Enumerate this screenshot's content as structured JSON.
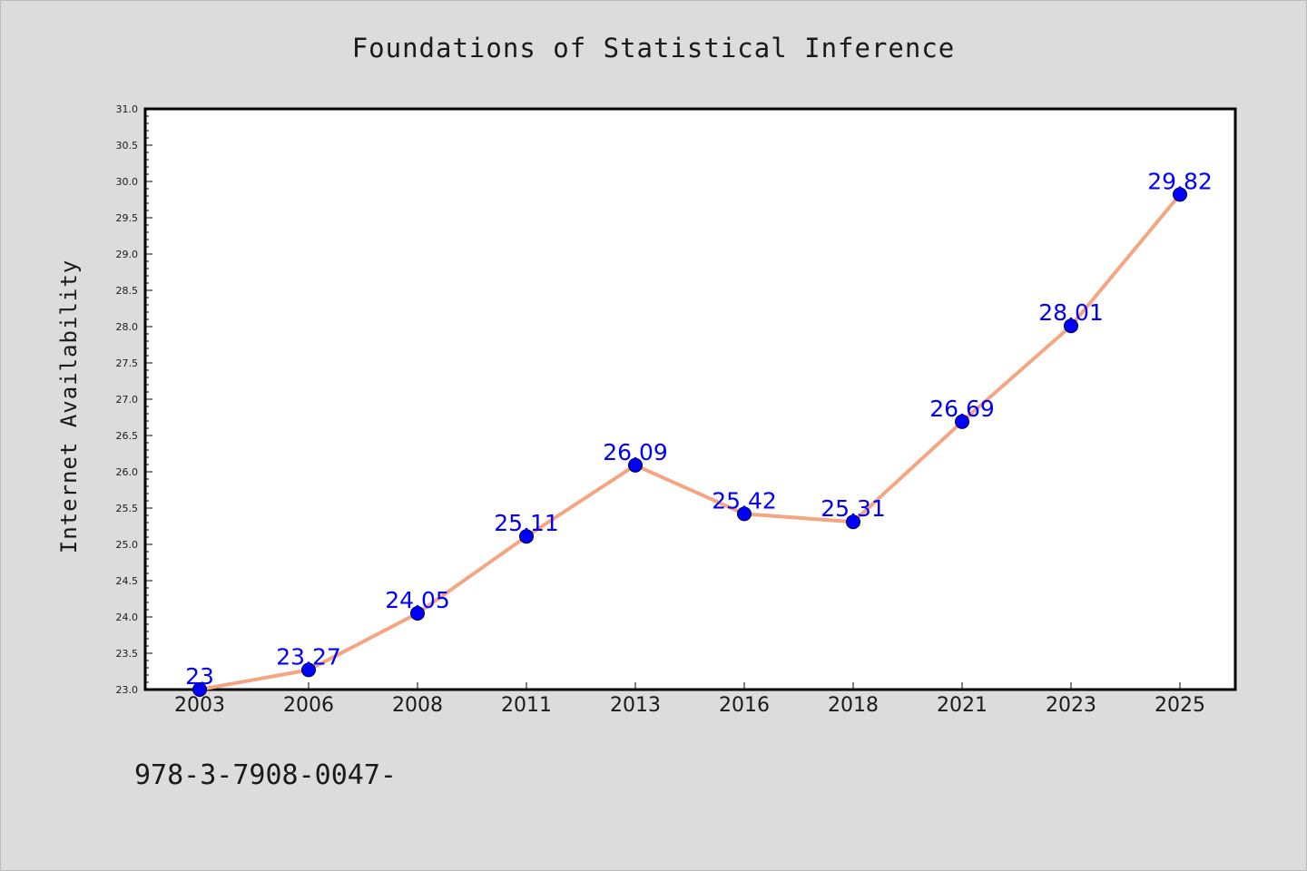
{
  "chart_data": {
    "type": "line",
    "title": "Foundations of Statistical Inference",
    "xlabel": "",
    "ylabel": "Internet Availability",
    "categories": [
      "2003",
      "2006",
      "2008",
      "2011",
      "2013",
      "2016",
      "2018",
      "2021",
      "2023",
      "2025"
    ],
    "series": [
      {
        "values": [
          23,
          23.27,
          24.05,
          25.11,
          26.09,
          25.42,
          25.31,
          26.69,
          28.01,
          29.82
        ],
        "data_labels": [
          "23",
          "23.27",
          "24.05",
          "25.11",
          "26.09",
          "25.42",
          "25.31",
          "26.69",
          "28.01",
          "29.82"
        ],
        "line_color": "#f4a582",
        "marker_color": "#0000ff"
      }
    ],
    "ylim": [
      23.0,
      31.0
    ],
    "yticks": [
      "23.0",
      "23.5",
      "24.0",
      "24.5",
      "25.0",
      "25.5",
      "26.0",
      "26.5",
      "27.0",
      "27.5",
      "28.0",
      "28.5",
      "29.0",
      "29.5",
      "30.0",
      "30.5",
      "31.0"
    ],
    "grid": false,
    "legend": "none"
  },
  "footer": {
    "isbn": "978-3-7908-0047-"
  },
  "colors": {
    "background": "#dcdcdc",
    "plot_background": "#ffffff",
    "axis": "#000000"
  }
}
